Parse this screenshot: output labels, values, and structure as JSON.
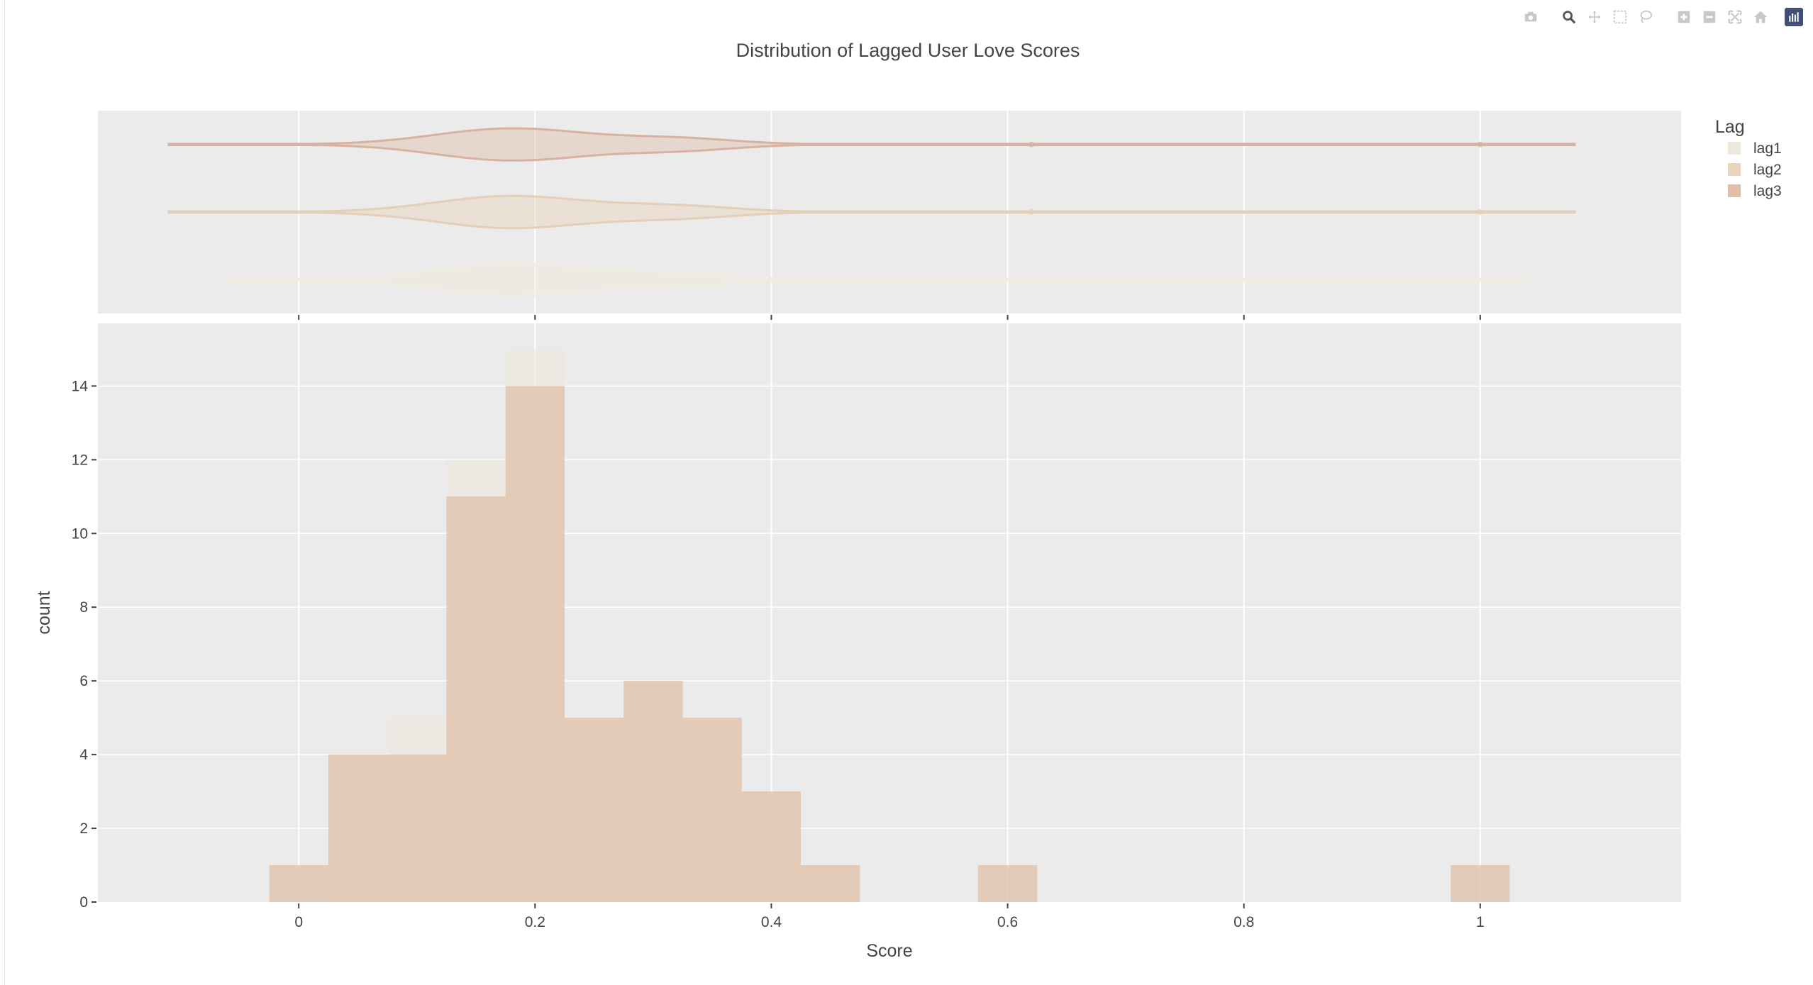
{
  "modebar": {
    "buttons": [
      "camera-icon",
      "zoom-icon",
      "pan-icon",
      "box-select-icon",
      "lasso-icon",
      "zoom-in-icon",
      "zoom-out-icon",
      "autoscale-icon",
      "reset-axes-icon",
      "plotly-logo-icon"
    ]
  },
  "chart_data": {
    "type": "bar",
    "subtype": "overlaid-histogram-with-violin-marginal",
    "title": "Distribution of Lagged User Love Scores",
    "xlabel": "Score",
    "ylabel": "count",
    "xlim": [
      -0.17,
      1.17
    ],
    "ylim": [
      0,
      15.7
    ],
    "x_ticks": [
      0,
      0.2,
      0.4,
      0.6,
      0.8,
      1
    ],
    "x_tick_labels": [
      "0",
      "0.2",
      "0.4",
      "0.6",
      "0.8",
      "1"
    ],
    "y_ticks": [
      0,
      2,
      4,
      6,
      8,
      10,
      12,
      14
    ],
    "y_tick_labels": [
      "0",
      "2",
      "4",
      "6",
      "8",
      "10",
      "12",
      "14"
    ],
    "grid": true,
    "legend": {
      "title": "Lag",
      "position": "top-right"
    },
    "bin_width": 0.05,
    "bins": [
      0,
      0.05,
      0.1,
      0.15,
      0.2,
      0.25,
      0.3,
      0.35,
      0.4,
      0.45,
      0.5,
      0.55,
      0.6,
      0.65,
      0.7,
      0.75,
      0.8,
      0.85,
      0.9,
      0.95,
      1
    ],
    "series": [
      {
        "name": "lag1",
        "color": "#efe8dc",
        "values": [
          0,
          4,
          5,
          12,
          15,
          5,
          6,
          5,
          3,
          1,
          0,
          0,
          0,
          0,
          0,
          0,
          0,
          0,
          0,
          0,
          0
        ],
        "violin": {
          "min": -0.06,
          "max": 1.04,
          "peak": 0.18
        }
      },
      {
        "name": "lag2",
        "color": "#e8d3bb",
        "values": [
          1,
          4,
          4,
          11,
          14,
          5,
          6,
          5,
          3,
          1,
          0,
          0,
          1,
          0,
          0,
          0,
          0,
          0,
          0,
          0,
          1
        ],
        "violin": {
          "min": -0.11,
          "max": 1.08,
          "peak": 0.18,
          "outliers": [
            0.62,
            1.0
          ]
        }
      },
      {
        "name": "lag3",
        "color": "#e0bfab",
        "values": [
          1,
          4,
          4,
          11,
          14,
          5,
          6,
          5,
          3,
          1,
          0,
          0,
          1,
          0,
          0,
          0,
          0,
          0,
          0,
          0,
          1
        ],
        "violin": {
          "min": -0.11,
          "max": 1.08,
          "peak": 0.18,
          "outliers": [
            0.62,
            1.0
          ]
        }
      }
    ]
  }
}
